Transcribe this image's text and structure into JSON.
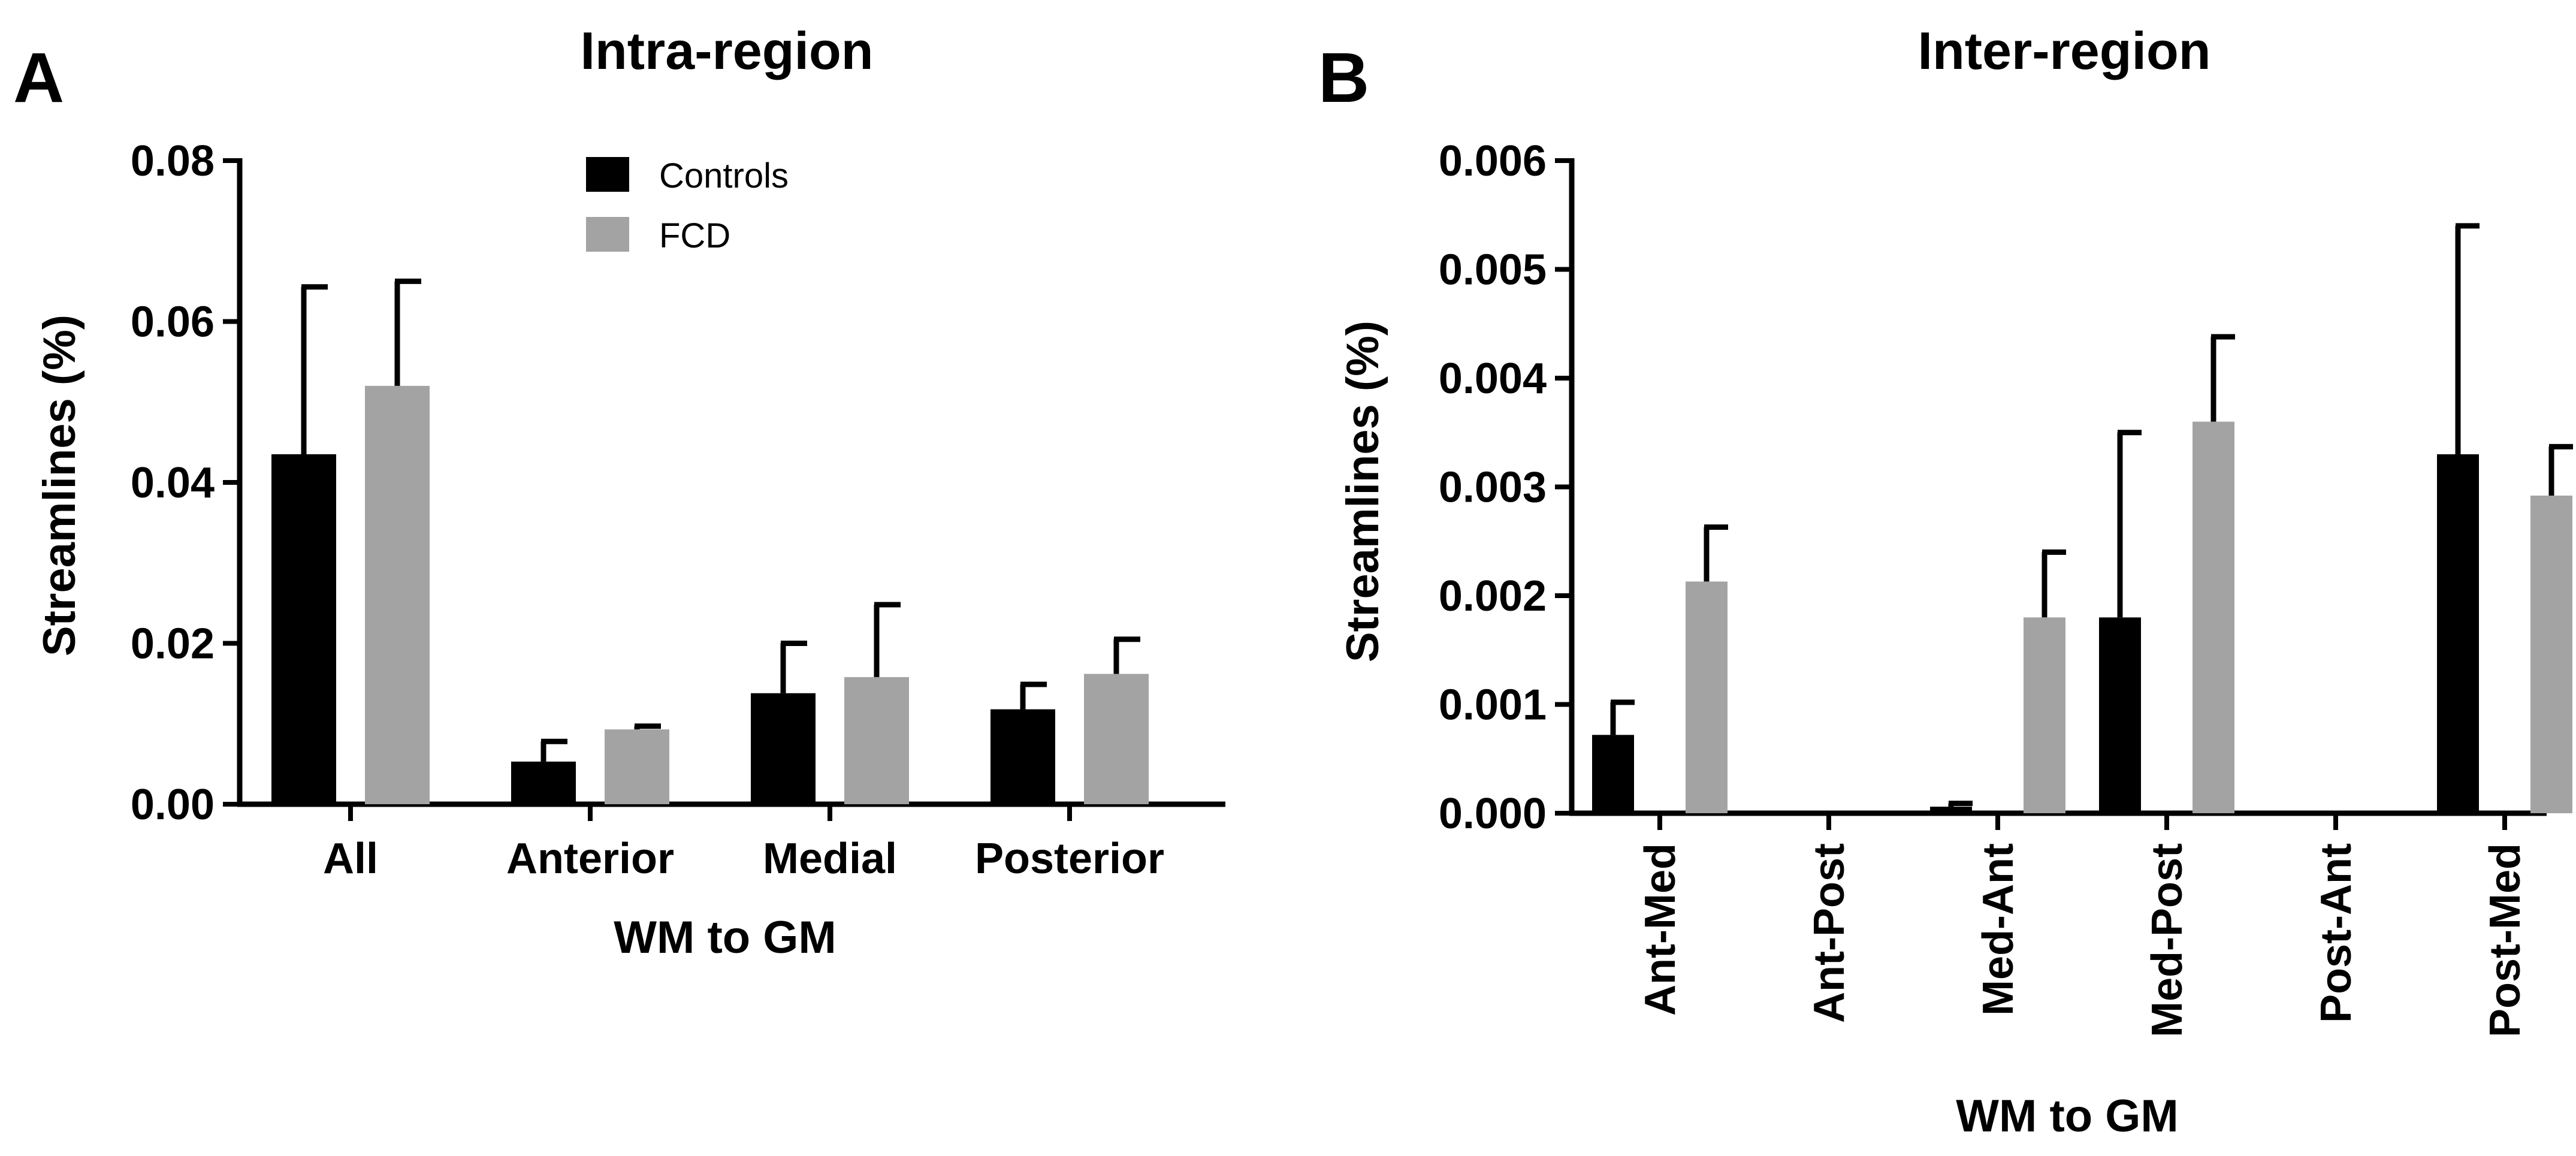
{
  "colors": {
    "controls": "#000000",
    "fcd": "#a3a3a3",
    "axis": "#000000"
  },
  "chart_data": [
    {
      "type": "bar",
      "panel_letter": "A",
      "title": "Intra-region",
      "xlabel": "WM to GM",
      "ylabel": "Streamlines (%)",
      "ylim": [
        0,
        0.08
      ],
      "yticks": [
        "0.00",
        "0.02",
        "0.04",
        "0.06",
        "0.08"
      ],
      "grid": false,
      "categories": [
        "All",
        "Anterior",
        "Medial",
        "Posterior"
      ],
      "series": [
        {
          "name": "Controls",
          "values": [
            0.0435,
            0.0053,
            0.0138,
            0.0118
          ],
          "errors": [
            0.0208,
            0.0025,
            0.0062,
            0.0031
          ]
        },
        {
          "name": "FCD",
          "values": [
            0.052,
            0.0093,
            0.0158,
            0.0162
          ],
          "errors": [
            0.013,
            0.0004,
            0.009,
            0.0043
          ]
        }
      ],
      "legend": {
        "entries": [
          "Controls",
          "FCD"
        ],
        "position": "top-center"
      }
    },
    {
      "type": "bar",
      "panel_letter": "B",
      "title": "Inter-region",
      "xlabel": "WM to GM",
      "ylabel": "Streamlines (%)",
      "ylim": [
        0,
        0.006
      ],
      "yticks": [
        "0.000",
        "0.001",
        "0.002",
        "0.003",
        "0.004",
        "0.005",
        "0.006"
      ],
      "grid": false,
      "categories": [
        "Ant-Med",
        "Ant-Post",
        "Med-Ant",
        "Med-Post",
        "Post-Ant",
        "Post-Med"
      ],
      "series": [
        {
          "name": "Controls",
          "values": [
            0.00072,
            0,
            6e-05,
            0.0018,
            0,
            0.0033
          ],
          "errors": [
            0.0003,
            0,
            3e-05,
            0.0017,
            0,
            0.0021
          ]
        },
        {
          "name": "FCD",
          "values": [
            0.00213,
            0,
            0.0018,
            0.0036,
            0,
            0.00292
          ],
          "errors": [
            0.0005,
            0,
            0.0006,
            0.00078,
            0,
            0.00045
          ]
        }
      ]
    }
  ]
}
